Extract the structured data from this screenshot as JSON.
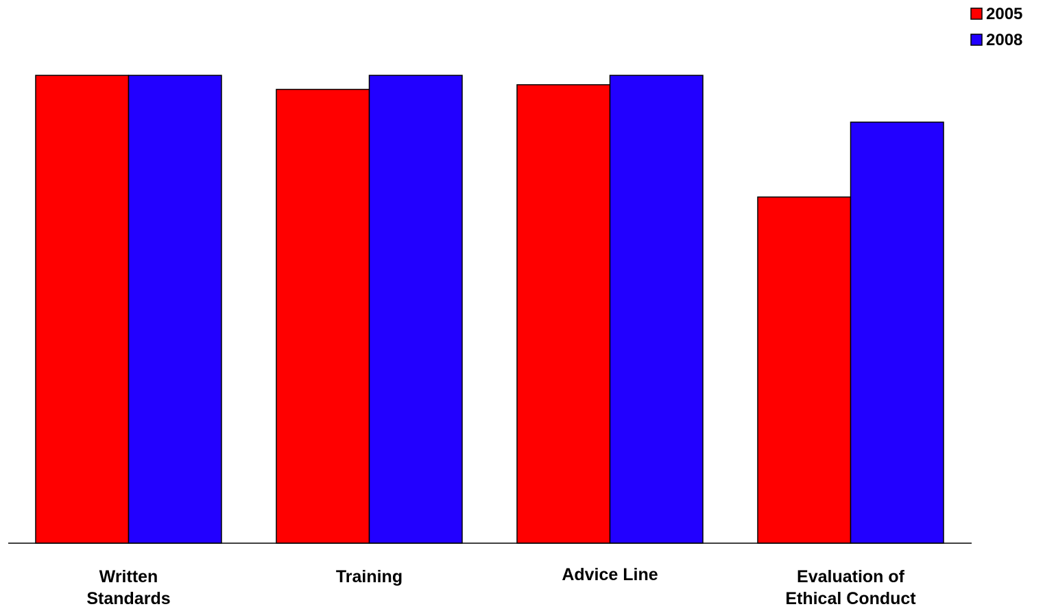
{
  "chart_data": {
    "type": "bar",
    "title": "",
    "xlabel": "",
    "ylabel": "",
    "ylim": [
      0,
      100
    ],
    "grid": false,
    "legend_position": "top-right",
    "categories": [
      [
        "Written",
        "Standards"
      ],
      [
        "Training"
      ],
      [
        "Advice Line"
      ],
      [
        "Evaluation of",
        "Ethical Conduct"
      ]
    ],
    "series": [
      {
        "name": "2005",
        "color": "#ff0000",
        "values": [
          100,
          97,
          98,
          74
        ]
      },
      {
        "name": "2008",
        "color": "#2200ff",
        "values": [
          100,
          100,
          100,
          90
        ]
      }
    ]
  }
}
